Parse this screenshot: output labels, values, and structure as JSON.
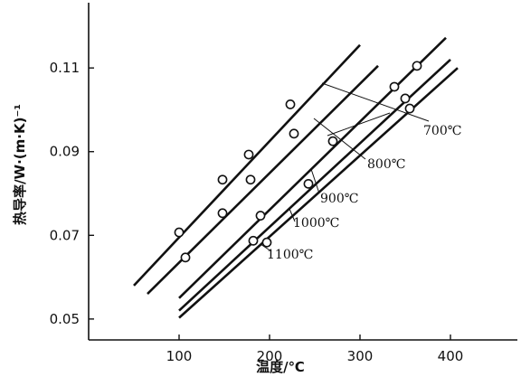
{
  "chart_data": {
    "type": "scatter",
    "xlabel": "温度/℃",
    "ylabel": "热导率/W·(m·K)⁻¹",
    "xlim": [
      0,
      450
    ],
    "ylim": [
      0.045,
      0.123
    ],
    "xticks": [
      "100",
      "200",
      "300",
      "400"
    ],
    "yticks": [
      "0.05",
      "0.07",
      "0.09",
      "0.11"
    ],
    "series": [
      {
        "name": "700℃",
        "line": [
          [
            50,
            0.058
          ],
          [
            300,
            0.1155
          ]
        ],
        "points": [
          [
            100,
            0.0707
          ],
          [
            148,
            0.0833
          ],
          [
            177,
            0.0893
          ],
          [
            223,
            0.1013
          ]
        ]
      },
      {
        "name": "800℃",
        "line": [
          [
            65,
            0.056
          ],
          [
            320,
            0.1105
          ]
        ],
        "points": [
          [
            107,
            0.0647
          ],
          [
            148,
            0.0753
          ],
          [
            179,
            0.0833
          ],
          [
            227,
            0.0943
          ]
        ]
      },
      {
        "name": "900℃",
        "line": [
          [
            100,
            0.055
          ],
          [
            395,
            0.1172
          ]
        ],
        "points": [
          [
            190,
            0.0747
          ],
          [
            270,
            0.0925
          ],
          [
            338,
            0.1055
          ],
          [
            363,
            0.1105
          ]
        ]
      },
      {
        "name": "1000℃",
        "line": [
          [
            100,
            0.052
          ],
          [
            400,
            0.112
          ]
        ],
        "points": [
          [
            182,
            0.0687
          ],
          [
            243,
            0.0823
          ],
          [
            350,
            0.1027
          ]
        ]
      },
      {
        "name": "1100℃",
        "line": [
          [
            100,
            0.0503
          ],
          [
            408,
            0.11
          ]
        ],
        "points": [
          [
            197,
            0.0683
          ],
          [
            355,
            0.1003
          ]
        ]
      }
    ]
  }
}
